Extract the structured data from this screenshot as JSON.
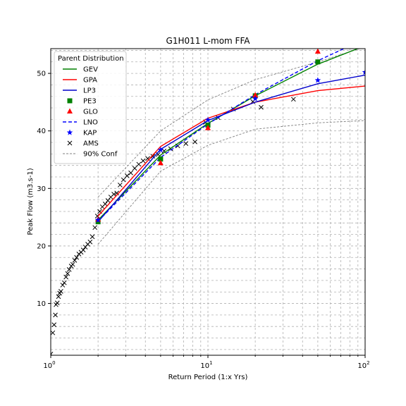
{
  "chart_data": {
    "type": "line",
    "title": "G1H011 L-mom FFA",
    "xlabel": "Return Period (1:x Yrs)",
    "ylabel": "Peak Flow (m3.s-1)",
    "ylabel_color": "#008000",
    "x_scale": "log",
    "xlim": [
      1,
      100
    ],
    "ylim": [
      1,
      54.3
    ],
    "x_ticks": [
      {
        "value": 1,
        "base": "10",
        "exp": "0"
      },
      {
        "value": 10,
        "base": "10",
        "exp": "1"
      },
      {
        "value": 100,
        "base": "10",
        "exp": "2"
      }
    ],
    "y_ticks": [
      10,
      20,
      30,
      40,
      50
    ],
    "grid": true,
    "legend": {
      "title": "Parent Distribution",
      "placement": "top-left",
      "entries": [
        {
          "label": "GEV",
          "kind": "line",
          "color": "#008000",
          "dash": "solid"
        },
        {
          "label": "GPA",
          "kind": "line",
          "color": "#ff0000",
          "dash": "solid"
        },
        {
          "label": "LP3",
          "kind": "line",
          "color": "#0000cc",
          "dash": "solid"
        },
        {
          "label": "PE3",
          "kind": "square",
          "color": "#008000"
        },
        {
          "label": "GLO",
          "kind": "triangle",
          "color": "#ff0000"
        },
        {
          "label": "LNO",
          "kind": "line",
          "color": "#0000ff",
          "dash": "dashed"
        },
        {
          "label": "KAP",
          "kind": "star",
          "color": "#0000ff"
        },
        {
          "label": "AMS",
          "kind": "x",
          "color": "#000000"
        },
        {
          "label": "90% Conf",
          "kind": "line",
          "color": "#808080",
          "dash": "dashed"
        }
      ]
    },
    "series": [
      {
        "name": "GEV",
        "kind": "line",
        "color": "#008000",
        "dash": "solid",
        "x": [
          2,
          5,
          10,
          20,
          50,
          100
        ],
        "y": [
          24.5,
          35.8,
          41.3,
          46.1,
          51.6,
          54.8
        ]
      },
      {
        "name": "GPA",
        "kind": "line",
        "color": "#ff0000",
        "dash": "solid",
        "x": [
          2,
          5,
          10,
          20,
          50,
          100
        ],
        "y": [
          25.2,
          37.3,
          42.2,
          45.0,
          47.0,
          47.8
        ]
      },
      {
        "name": "LP3",
        "kind": "line",
        "color": "#0000cc",
        "dash": "solid",
        "x": [
          2,
          5,
          10,
          20,
          50,
          100
        ],
        "y": [
          24.2,
          36.8,
          41.8,
          45.0,
          48.2,
          49.7
        ]
      },
      {
        "name": "LNO",
        "kind": "line",
        "color": "#0000ff",
        "dash": "dashed",
        "x": [
          2,
          5,
          10,
          20,
          50,
          100
        ],
        "y": [
          24.3,
          35.4,
          41.2,
          46.3,
          52.2,
          56.0
        ]
      },
      {
        "name": "90% Conf",
        "kind": "line",
        "color": "#808080",
        "dash": "dashed",
        "x": [
          2,
          5,
          10,
          20,
          50,
          100
        ],
        "y": [
          28.5,
          40.0,
          45.4,
          48.9,
          52.0,
          54.6
        ]
      },
      {
        "name": "90% Conf",
        "kind": "line",
        "color": "#808080",
        "dash": "dashed",
        "legend": false,
        "x": [
          2,
          5,
          10,
          20,
          50,
          100
        ],
        "y": [
          20.3,
          33.0,
          37.5,
          40.3,
          41.4,
          41.8
        ]
      },
      {
        "name": "PE3",
        "kind": "square",
        "color": "#008000",
        "x": [
          2,
          5,
          10,
          20,
          50
        ],
        "y": [
          24.2,
          35.1,
          41.0,
          46.1,
          52.0
        ]
      },
      {
        "name": "GLO",
        "kind": "triangle",
        "color": "#ff0000",
        "x": [
          2,
          5,
          10,
          20,
          50
        ],
        "y": [
          24.6,
          34.4,
          40.5,
          46.2,
          53.8
        ]
      },
      {
        "name": "KAP",
        "kind": "star",
        "color": "#0000ff",
        "x": [
          2,
          5,
          10,
          20,
          50,
          100
        ],
        "y": [
          24.5,
          36.7,
          41.9,
          45.6,
          48.8,
          50.2
        ]
      },
      {
        "name": "AMS",
        "kind": "x",
        "color": "#000000",
        "x": [
          1.0,
          1.03,
          1.05,
          1.07,
          1.08,
          1.1,
          1.12,
          1.14,
          1.16,
          1.19,
          1.22,
          1.25,
          1.28,
          1.31,
          1.35,
          1.38,
          1.42,
          1.46,
          1.51,
          1.56,
          1.61,
          1.66,
          1.72,
          1.78,
          1.84,
          1.91,
          1.98,
          2.05,
          2.13,
          2.22,
          2.31,
          2.41,
          2.52,
          2.63,
          2.76,
          2.9,
          3.06,
          3.23,
          3.42,
          3.63,
          3.87,
          4.14,
          4.46,
          4.82,
          5.26,
          5.79,
          6.43,
          7.24,
          8.27,
          9.65,
          11.6,
          14.5,
          19.3,
          21.8,
          35.0
        ],
        "y": [
          1.2,
          4.9,
          6.3,
          8.0,
          9.8,
          10.1,
          11.2,
          11.8,
          12.1,
          13.2,
          13.6,
          14.6,
          15.2,
          15.9,
          16.5,
          16.8,
          17.5,
          18.0,
          18.6,
          18.9,
          19.3,
          19.8,
          20.3,
          20.7,
          21.6,
          23.2,
          25.2,
          26.0,
          26.8,
          27.3,
          27.9,
          28.5,
          29.0,
          29.2,
          30.6,
          31.5,
          32.2,
          32.7,
          33.5,
          34.2,
          34.8,
          35.2,
          35.6,
          35.9,
          36.5,
          36.9,
          37.4,
          37.8,
          38.1,
          41.5,
          42.3,
          43.8,
          45.1,
          44.1,
          45.5
        ]
      }
    ]
  }
}
